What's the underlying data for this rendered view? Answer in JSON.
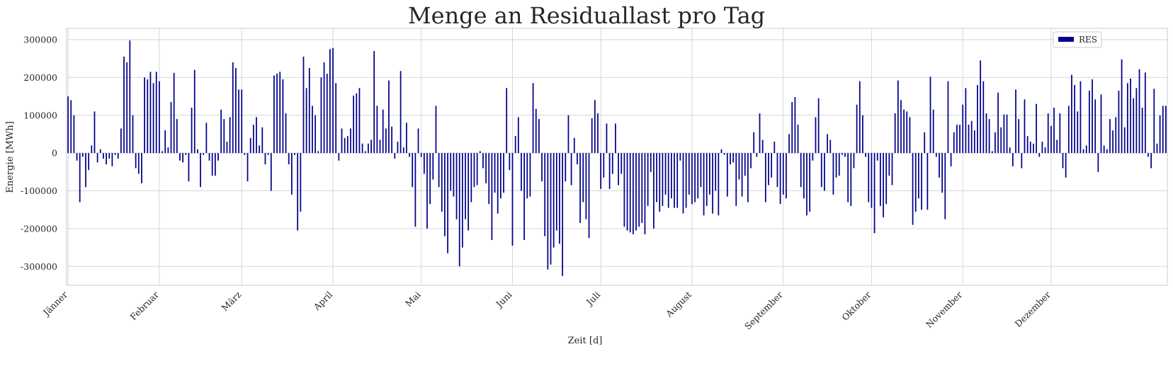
{
  "chart_data": {
    "type": "bar",
    "title": "Menge an Residuallast pro Tag",
    "xlabel": "Zeit [d]",
    "ylabel": "Energie [MWh]",
    "ylim": [
      -350000,
      330000
    ],
    "yticks": [
      -300000,
      -200000,
      -100000,
      0,
      100000,
      200000,
      300000
    ],
    "xtick_labels": [
      "Jänner",
      "Februar",
      "März",
      "April",
      "Mai",
      "Juni",
      "Juli",
      "August",
      "September",
      "Oktober",
      "November",
      "Dezember"
    ],
    "xtick_days": [
      1,
      32,
      60,
      91,
      121,
      152,
      182,
      213,
      244,
      274,
      305,
      335
    ],
    "grid": true,
    "legend_position": "top-right",
    "color": "#00008b",
    "series": [
      {
        "name": "RES",
        "values": [
          150000,
          140000,
          100000,
          -20000,
          -130000,
          -10000,
          -90000,
          -45000,
          20000,
          110000,
          -25000,
          10000,
          -15000,
          -30000,
          -15000,
          -35000,
          -5000,
          -15000,
          65000,
          255000,
          240000,
          298000,
          100000,
          -40000,
          -55000,
          -80000,
          200000,
          195000,
          215000,
          185000,
          215000,
          190000,
          5000,
          60000,
          15000,
          135000,
          212000,
          90000,
          -20000,
          -25000,
          -5000,
          -75000,
          120000,
          220000,
          10000,
          -90000,
          -5000,
          80000,
          -20000,
          -60000,
          -60000,
          -20000,
          115000,
          90000,
          30000,
          95000,
          240000,
          225000,
          168000,
          168000,
          -5000,
          -75000,
          40000,
          75000,
          95000,
          20000,
          68000,
          -30000,
          -5000,
          -100000,
          205000,
          210000,
          215000,
          195000,
          105000,
          -30000,
          -110000,
          -5000,
          -205000,
          -155000,
          255000,
          172000,
          225000,
          125000,
          100000,
          5000,
          200000,
          240000,
          210000,
          275000,
          278000,
          185000,
          -20000,
          65000,
          40000,
          45000,
          65000,
          152000,
          158000,
          172000,
          25000,
          5000,
          25000,
          35000,
          270000,
          125000,
          35000,
          115000,
          65000,
          192000,
          70000,
          -15000,
          30000,
          217000,
          15000,
          80000,
          -10000,
          -90000,
          -195000,
          65000,
          -10000,
          -55000,
          -200000,
          -135000,
          -70000,
          125000,
          -90000,
          -155000,
          -220000,
          -265000,
          -100000,
          -115000,
          -175000,
          -300000,
          -250000,
          -175000,
          -205000,
          -130000,
          -90000,
          -85000,
          5000,
          -40000,
          -80000,
          -135000,
          -230000,
          -105000,
          -160000,
          -120000,
          -105000,
          172000,
          -45000,
          -245000,
          45000,
          95000,
          -100000,
          -230000,
          -120000,
          -115000,
          185000,
          117000,
          90000,
          -75000,
          -220000,
          -308000,
          -295000,
          -250000,
          -205000,
          -240000,
          -325000,
          -75000,
          100000,
          -85000,
          40000,
          -30000,
          -185000,
          -130000,
          -175000,
          -225000,
          92000,
          140000,
          105000,
          -95000,
          -65000,
          78000,
          -95000,
          -55000,
          78000,
          -85000,
          -55000,
          -195000,
          -205000,
          -210000,
          -215000,
          -205000,
          -195000,
          -185000,
          -215000,
          -140000,
          -50000,
          -200000,
          -130000,
          -155000,
          -140000,
          -110000,
          -145000,
          -120000,
          -145000,
          -145000,
          -20000,
          -160000,
          -145000,
          -110000,
          -135000,
          -130000,
          -120000,
          -90000,
          -165000,
          -140000,
          -110000,
          -160000,
          -100000,
          -165000,
          10000,
          -5000,
          -115000,
          -30000,
          -25000,
          -140000,
          -70000,
          -115000,
          -60000,
          -130000,
          -40000,
          55000,
          -10000,
          105000,
          35000,
          -130000,
          -85000,
          -65000,
          30000,
          -90000,
          -135000,
          -110000,
          -120000,
          50000,
          135000,
          148000,
          75000,
          -90000,
          -120000,
          -165000,
          -155000,
          -20000,
          95000,
          145000,
          -90000,
          -100000,
          50000,
          35000,
          -110000,
          -65000,
          -60000,
          -5000,
          -10000,
          -130000,
          -140000,
          -40000,
          128000,
          190000,
          100000,
          -10000,
          -130000,
          -145000,
          -212000,
          -20000,
          -140000,
          -170000,
          -135000,
          -60000,
          -85000,
          105000,
          192000,
          140000,
          115000,
          110000,
          95000,
          -190000,
          -155000,
          -120000,
          -150000,
          55000,
          -150000,
          202000,
          115000,
          -10000,
          -65000,
          -105000,
          -175000,
          190000,
          -35000,
          55000,
          75000,
          75000,
          128000,
          172000,
          75000,
          85000,
          60000,
          180000,
          245000,
          190000,
          105000,
          90000,
          5000,
          55000,
          160000,
          68000,
          102000,
          102000,
          15000,
          -35000,
          168000,
          90000,
          -40000,
          142000,
          45000,
          30000,
          25000,
          130000,
          -10000,
          30000,
          15000,
          105000,
          72000,
          120000,
          35000,
          105000,
          -40000,
          -65000,
          125000,
          207000,
          180000,
          110000,
          190000,
          10000,
          20000,
          165000,
          195000,
          142000,
          -50000,
          155000,
          20000,
          10000,
          90000,
          60000,
          95000,
          165000,
          248000,
          68000,
          185000,
          197000,
          145000,
          172000,
          222000,
          120000,
          213000,
          -10000,
          -40000,
          170000,
          25000,
          100000,
          125000,
          125000
        ]
      }
    ]
  }
}
